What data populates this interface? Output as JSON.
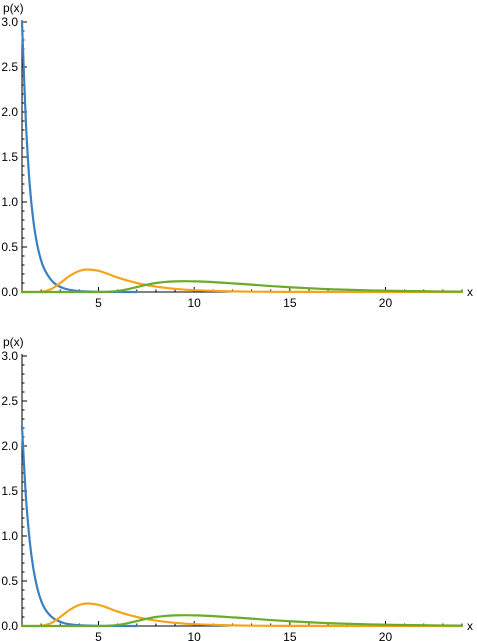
{
  "chart_data": [
    {
      "type": "line",
      "title": "",
      "xlabel": "x",
      "ylabel": "p(x)",
      "xlim": [
        1,
        24
      ],
      "ylim": [
        0,
        3.0
      ],
      "x_ticks": [
        5,
        10,
        15,
        20
      ],
      "x_tick_labels": [
        "5",
        "10",
        "15",
        "20"
      ],
      "y_ticks": [
        0.0,
        0.5,
        1.0,
        1.5,
        2.0,
        2.5,
        3.0
      ],
      "y_tick_labels": [
        "0.0",
        "0.5",
        "1.0",
        "1.5",
        "2.0",
        "2.5",
        "3.0"
      ],
      "grid": false,
      "series": [
        {
          "color": "#3a7fc1",
          "x": [
            1.0,
            1.2,
            1.4,
            1.6,
            1.8,
            2.0,
            2.2,
            2.5,
            2.8,
            3.2,
            3.6,
            4.0,
            4.5,
            5.0,
            6.0,
            7.0
          ],
          "y": [
            3.0,
            1.9,
            1.2,
            0.78,
            0.52,
            0.35,
            0.24,
            0.14,
            0.08,
            0.04,
            0.02,
            0.01,
            0.005,
            0.002,
            0.0005,
            0.0
          ]
        },
        {
          "color": "#f5a31a",
          "x": [
            1.0,
            2.0,
            2.5,
            3.0,
            3.5,
            4.0,
            4.4,
            5.0,
            5.5,
            6.0,
            7.0,
            8.0,
            9.0,
            10.0,
            12.0,
            14.0,
            16.0,
            20.0,
            24.0
          ],
          "y": [
            0.0,
            0.002,
            0.03,
            0.1,
            0.18,
            0.235,
            0.25,
            0.235,
            0.2,
            0.16,
            0.1,
            0.06,
            0.035,
            0.02,
            0.007,
            0.002,
            0.001,
            0.0,
            0.0
          ],
          "x_extra": []
        },
        {
          "color": "#6aab2a",
          "x": [
            1.0,
            5.0,
            5.5,
            6.0,
            6.5,
            7.0,
            7.5,
            8.0,
            8.5,
            9.0,
            9.5,
            10.0,
            11.0,
            12.0,
            13.0,
            14.0,
            15.0,
            16.0,
            17.0,
            18.0,
            20.0,
            22.0,
            24.0
          ],
          "y": [
            0.0,
            0.0,
            0.003,
            0.012,
            0.03,
            0.055,
            0.08,
            0.1,
            0.112,
            0.118,
            0.12,
            0.118,
            0.11,
            0.096,
            0.082,
            0.066,
            0.053,
            0.042,
            0.032,
            0.025,
            0.014,
            0.008,
            0.004
          ]
        }
      ]
    },
    {
      "type": "line",
      "title": "",
      "xlabel": "x",
      "ylabel": "p(x)",
      "xlim": [
        1,
        24
      ],
      "ylim": [
        0,
        3.0
      ],
      "x_ticks": [
        5,
        10,
        15,
        20
      ],
      "x_tick_labels": [
        "5",
        "10",
        "15",
        "20"
      ],
      "y_ticks": [
        0.0,
        0.5,
        1.0,
        1.5,
        2.0,
        2.5,
        3.0
      ],
      "y_tick_labels": [
        "0.0",
        "0.5",
        "1.0",
        "1.5",
        "2.0",
        "2.5",
        "3.0"
      ],
      "grid": false,
      "series": [
        {
          "color": "#3a7fc1",
          "x": [
            1.0,
            1.2,
            1.4,
            1.6,
            1.8,
            2.0,
            2.2,
            2.5,
            2.8,
            3.2,
            3.6,
            4.0,
            4.5,
            5.0,
            6.0,
            7.0
          ],
          "y": [
            2.22,
            1.45,
            0.95,
            0.63,
            0.42,
            0.28,
            0.19,
            0.11,
            0.065,
            0.032,
            0.016,
            0.008,
            0.004,
            0.002,
            0.0005,
            0.0
          ]
        },
        {
          "color": "#f5a31a",
          "x": [
            1.0,
            2.0,
            2.5,
            3.0,
            3.5,
            4.0,
            4.4,
            5.0,
            5.5,
            6.0,
            7.0,
            8.0,
            9.0,
            10.0,
            12.0,
            14.0,
            16.0,
            20.0,
            24.0
          ],
          "y": [
            0.0,
            0.002,
            0.03,
            0.1,
            0.18,
            0.235,
            0.25,
            0.235,
            0.2,
            0.16,
            0.1,
            0.06,
            0.035,
            0.02,
            0.007,
            0.002,
            0.001,
            0.0,
            0.0
          ]
        },
        {
          "color": "#6aab2a",
          "x": [
            1.0,
            5.0,
            5.5,
            6.0,
            6.5,
            7.0,
            7.5,
            8.0,
            8.5,
            9.0,
            9.5,
            10.0,
            11.0,
            12.0,
            13.0,
            14.0,
            15.0,
            16.0,
            17.0,
            18.0,
            20.0,
            22.0,
            24.0
          ],
          "y": [
            0.0,
            0.0,
            0.003,
            0.012,
            0.03,
            0.055,
            0.08,
            0.1,
            0.112,
            0.118,
            0.12,
            0.118,
            0.11,
            0.096,
            0.082,
            0.066,
            0.053,
            0.042,
            0.032,
            0.025,
            0.014,
            0.008,
            0.004
          ]
        }
      ]
    }
  ]
}
